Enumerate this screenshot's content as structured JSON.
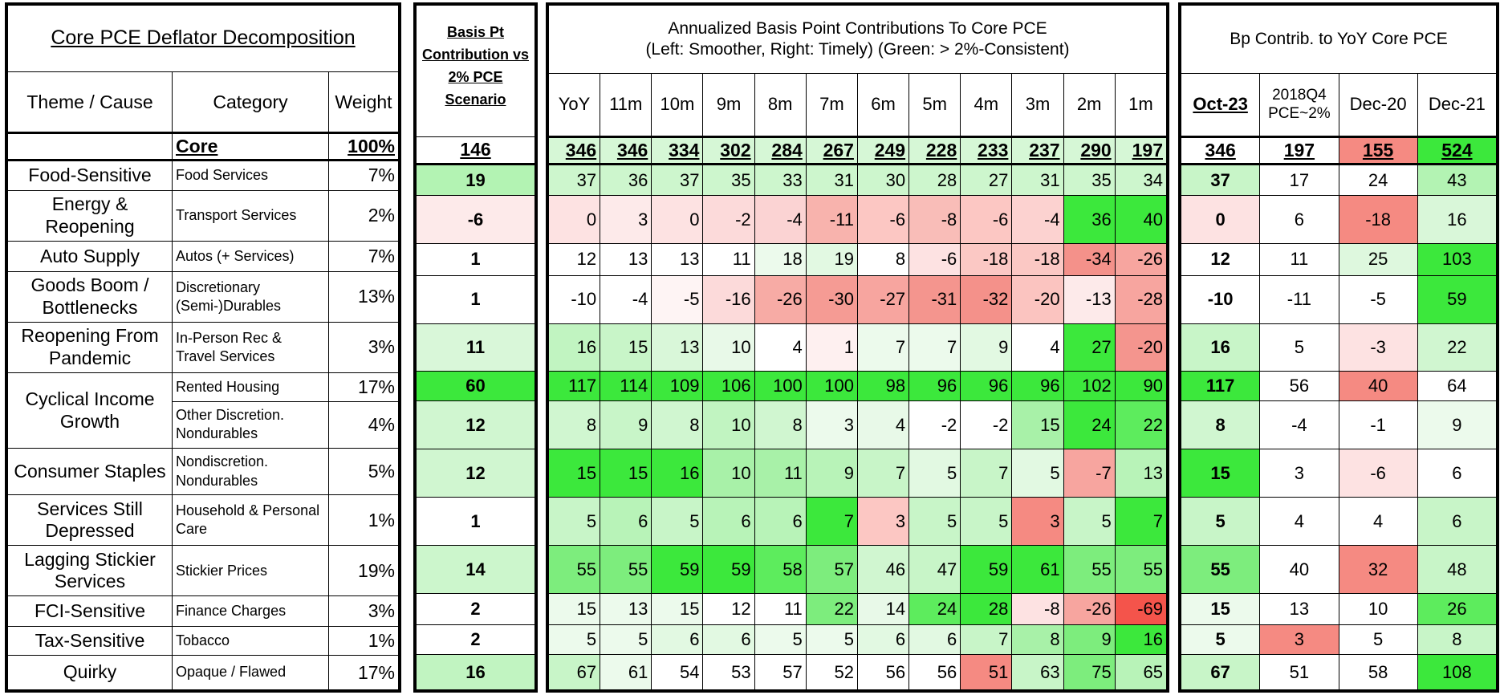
{
  "sections": {
    "decomposition": "Core PCE Deflator Decomposition",
    "basis_pt": "Basis Pt Contribution vs 2% PCE Scenario",
    "annualized_line1": "Annualized Basis Point Contributions To Core PCE",
    "annualized_line2": "(Left: Smoother, Right: Timely) (Green: > 2%-Consistent)",
    "bp_contrib": "Bp Contrib. to YoY Core PCE"
  },
  "headers": {
    "theme": "Theme / Cause",
    "category": "Category",
    "weight": "Weight",
    "periods": [
      "YoY",
      "11m",
      "10m",
      "9m",
      "8m",
      "7m",
      "6m",
      "5m",
      "4m",
      "3m",
      "2m",
      "1m"
    ],
    "yoy_cols": [
      "Oct-23",
      "2018Q4 PCE~2%",
      "Dec-20",
      "Dec-21"
    ]
  },
  "core": {
    "label": "Core",
    "weight": "100%",
    "basis": "146",
    "periods": [
      "346",
      "346",
      "334",
      "302",
      "284",
      "267",
      "249",
      "228",
      "233",
      "237",
      "290",
      "197"
    ],
    "yoy": [
      "346",
      "197",
      "155",
      "524"
    ],
    "period_colors": [
      "#d6f7d6",
      "#d6f7d6",
      "#d6f7d6",
      "#d6f7d6",
      "#d6f7d6",
      "#d6f7d6",
      "#d6f7d6",
      "#d6f7d6",
      "#d6f7d6",
      "#d6f7d6",
      "#d6f7d6",
      "#d6f7d6"
    ],
    "yoy_colors": [
      "#ffffff",
      "#ffffff",
      "#f58a82",
      "#3ce83c"
    ]
  },
  "rows": [
    {
      "theme": "Food-Sensitive",
      "category": "Food Services",
      "weight": "7%",
      "basis": "19",
      "basis_color": "#b3f3b3",
      "periods": [
        "37",
        "36",
        "37",
        "35",
        "33",
        "31",
        "30",
        "28",
        "27",
        "31",
        "35",
        "34"
      ],
      "colors": [
        "#cdf6cd",
        "#cdf6cd",
        "#cdf6cd",
        "#cdf6cd",
        "#cdf6cd",
        "#cdf6cd",
        "#cdf6cd",
        "#cdf6cd",
        "#cdf6cd",
        "#cdf6cd",
        "#cdf6cd",
        "#cdf6cd"
      ],
      "yoy": [
        "37",
        "17",
        "24",
        "43"
      ],
      "yoy_colors": [
        "#c8f5c8",
        "#ffffff",
        "#ffffff",
        "#b3f3b3"
      ]
    },
    {
      "theme": "Energy & Reopening",
      "category": "Transport Services",
      "weight": "2%",
      "basis": "-6",
      "basis_color": "#fdeaea",
      "periods": [
        "0",
        "3",
        "0",
        "-2",
        "-4",
        "-11",
        "-6",
        "-8",
        "-6",
        "-4",
        "36",
        "40"
      ],
      "colors": [
        "#fde2e2",
        "#fdeaea",
        "#fde2e2",
        "#fcdada",
        "#fbd3d3",
        "#f8b3ad",
        "#fcc7c3",
        "#f9bdb8",
        "#fcc7c3",
        "#fcd2d0",
        "#3ce83c",
        "#3ce83c"
      ],
      "yoy": [
        "0",
        "6",
        "-18",
        "16"
      ],
      "yoy_colors": [
        "#fde2e2",
        "#ffffff",
        "#f58a82",
        "#d9f7d9"
      ]
    },
    {
      "theme": "Auto Supply",
      "category": "Autos (+ Services)",
      "weight": "7%",
      "basis": "1",
      "basis_color": "#ffffff",
      "periods": [
        "12",
        "13",
        "13",
        "11",
        "18",
        "19",
        "8",
        "-6",
        "-18",
        "-18",
        "-34",
        "-26"
      ],
      "colors": [
        "#ffffff",
        "#ffffff",
        "#ffffff",
        "#ffffff",
        "#ecfaec",
        "#e2f9e2",
        "#ffffff",
        "#fde2e2",
        "#fbc8c4",
        "#fbc8c4",
        "#f4918a",
        "#f7a59f"
      ],
      "yoy": [
        "12",
        "11",
        "25",
        "103"
      ],
      "yoy_colors": [
        "#ffffff",
        "#ffffff",
        "#def8de",
        "#3ce83c"
      ]
    },
    {
      "theme": "Goods Boom / Bottlenecks",
      "category": "Discretionary (Semi-)Durables",
      "weight": "13%",
      "basis": "1",
      "basis_color": "#ffffff",
      "periods": [
        "-10",
        "-4",
        "-5",
        "-16",
        "-26",
        "-30",
        "-27",
        "-31",
        "-32",
        "-20",
        "-13",
        "-28"
      ],
      "colors": [
        "#ffffff",
        "#ffffff",
        "#fef4f4",
        "#fcdada",
        "#f7aba5",
        "#f59b94",
        "#f7a59f",
        "#f4958e",
        "#f4918a",
        "#fbc4c0",
        "#fdeaea",
        "#f7a59f"
      ],
      "yoy": [
        "-10",
        "-11",
        "-5",
        "59"
      ],
      "yoy_colors": [
        "#ffffff",
        "#ffffff",
        "#ffffff",
        "#3ce83c"
      ]
    },
    {
      "theme": "Reopening From Pandemic",
      "category": "In-Person Rec & Travel Services",
      "weight": "3%",
      "basis": "11",
      "basis_color": "#d9f7d9",
      "periods": [
        "16",
        "15",
        "13",
        "10",
        "4",
        "1",
        "7",
        "7",
        "9",
        "4",
        "27",
        "-20"
      ],
      "colors": [
        "#c1f4c1",
        "#c8f5c8",
        "#d9f7d9",
        "#e8f9e8",
        "#ffffff",
        "#fef0f0",
        "#ecfaec",
        "#ecfaec",
        "#e2f9e2",
        "#ffffff",
        "#3ce83c",
        "#f4958e"
      ],
      "yoy": [
        "16",
        "5",
        "-3",
        "22"
      ],
      "yoy_colors": [
        "#c8f5c8",
        "#ffffff",
        "#fde2e2",
        "#d0f6d0"
      ]
    },
    {
      "theme": "Cyclical Income Growth",
      "category": "Rented Housing",
      "weight": "17%",
      "basis": "60",
      "basis_color": "#3ce83c",
      "periods": [
        "117",
        "114",
        "109",
        "106",
        "100",
        "100",
        "98",
        "96",
        "96",
        "96",
        "102",
        "90"
      ],
      "colors": [
        "#3ce83c",
        "#3ce83c",
        "#3ce83c",
        "#3ce83c",
        "#3ce83c",
        "#3ce83c",
        "#3ce83c",
        "#3ce83c",
        "#3ce83c",
        "#3ce83c",
        "#3ce83c",
        "#3ce83c"
      ],
      "yoy": [
        "117",
        "56",
        "40",
        "64"
      ],
      "yoy_colors": [
        "#3ce83c",
        "#ffffff",
        "#f58a82",
        "#ffffff"
      ]
    },
    {
      "theme": "",
      "category": "Other Discretion. Nondurables",
      "weight": "4%",
      "basis": "12",
      "basis_color": "#d0f6d0",
      "periods": [
        "8",
        "9",
        "8",
        "10",
        "8",
        "3",
        "4",
        "-2",
        "-2",
        "15",
        "24",
        "22"
      ],
      "colors": [
        "#d0f6d0",
        "#c8f5c8",
        "#d0f6d0",
        "#c1f4c1",
        "#d0f6d0",
        "#ecfaec",
        "#e8f9e8",
        "#ffffff",
        "#ffffff",
        "#a8f1a8",
        "#3ce83c",
        "#5dec5d"
      ],
      "yoy": [
        "8",
        "-4",
        "-1",
        "9"
      ],
      "yoy_colors": [
        "#d0f6d0",
        "#ffffff",
        "#ffffff",
        "#ecfaec"
      ]
    },
    {
      "theme": "Consumer Staples",
      "category": "Nondiscretion. Nondurables",
      "weight": "5%",
      "basis": "12",
      "basis_color": "#d0f6d0",
      "periods": [
        "15",
        "15",
        "16",
        "10",
        "11",
        "9",
        "7",
        "5",
        "7",
        "5",
        "-7",
        "13"
      ],
      "colors": [
        "#3ce83c",
        "#3ce83c",
        "#3ce83c",
        "#a8f1a8",
        "#a8f1a8",
        "#b8f3b8",
        "#c8f5c8",
        "#e2f9e2",
        "#c8f5c8",
        "#e2f9e2",
        "#f7a59f",
        "#b8f3b8"
      ],
      "yoy": [
        "15",
        "3",
        "-6",
        "6"
      ],
      "yoy_colors": [
        "#3ce83c",
        "#ffffff",
        "#fde2e2",
        "#ffffff"
      ]
    },
    {
      "theme": "Services Still Depressed",
      "category": "Household & Personal Care",
      "weight": "1%",
      "basis": "1",
      "basis_color": "#ffffff",
      "periods": [
        "5",
        "6",
        "5",
        "6",
        "6",
        "7",
        "3",
        "5",
        "5",
        "3",
        "5",
        "7"
      ],
      "colors": [
        "#c8f5c8",
        "#b8f3b8",
        "#c8f5c8",
        "#b8f3b8",
        "#b8f3b8",
        "#3ce83c",
        "#fcc7c3",
        "#c8f5c8",
        "#c8f5c8",
        "#f58a82",
        "#c8f5c8",
        "#3ce83c"
      ],
      "yoy": [
        "5",
        "4",
        "4",
        "6"
      ],
      "yoy_colors": [
        "#c8f5c8",
        "#ffffff",
        "#ffffff",
        "#c8f5c8"
      ]
    },
    {
      "theme": "Lagging Stickier Services",
      "category": "Stickier Prices",
      "weight": "19%",
      "basis": "14",
      "basis_color": "#ccf6cc",
      "periods": [
        "55",
        "55",
        "59",
        "59",
        "58",
        "57",
        "46",
        "47",
        "59",
        "61",
        "55",
        "55"
      ],
      "colors": [
        "#7ded7d",
        "#7ded7d",
        "#3ce83c",
        "#3ce83c",
        "#5dec5d",
        "#7ded7d",
        "#d0f6d0",
        "#c8f5c8",
        "#3ce83c",
        "#3ce83c",
        "#7ded7d",
        "#7ded7d"
      ],
      "yoy": [
        "55",
        "40",
        "32",
        "48"
      ],
      "yoy_colors": [
        "#7ded7d",
        "#ffffff",
        "#f58a82",
        "#c8f5c8"
      ]
    },
    {
      "theme": "FCI-Sensitive",
      "category": "Finance Charges",
      "weight": "3%",
      "basis": "2",
      "basis_color": "#ffffff",
      "periods": [
        "15",
        "13",
        "15",
        "12",
        "11",
        "22",
        "14",
        "24",
        "28",
        "-8",
        "-26",
        "-69"
      ],
      "colors": [
        "#ecfaec",
        "#ecfaec",
        "#ecfaec",
        "#ffffff",
        "#ffffff",
        "#7ded7d",
        "#e8f9e8",
        "#5dec5d",
        "#3ce83c",
        "#fde2e2",
        "#f7a59f",
        "#f4544b"
      ],
      "yoy": [
        "15",
        "13",
        "10",
        "26"
      ],
      "yoy_colors": [
        "#ecfaec",
        "#ffffff",
        "#ffffff",
        "#5dec5d"
      ]
    },
    {
      "theme": "Tax-Sensitive",
      "category": "Tobacco",
      "weight": "1%",
      "basis": "2",
      "basis_color": "#ffffff",
      "periods": [
        "5",
        "5",
        "6",
        "6",
        "5",
        "5",
        "6",
        "6",
        "7",
        "8",
        "9",
        "16"
      ],
      "colors": [
        "#ecfaec",
        "#ecfaec",
        "#e2f9e2",
        "#e2f9e2",
        "#ecfaec",
        "#ecfaec",
        "#e2f9e2",
        "#e2f9e2",
        "#c8f5c8",
        "#a8f1a8",
        "#7ded7d",
        "#3ce83c"
      ],
      "yoy": [
        "5",
        "3",
        "5",
        "8"
      ],
      "yoy_colors": [
        "#ecfaec",
        "#f58a82",
        "#ffffff",
        "#c8f5c8"
      ]
    },
    {
      "theme": "Quirky",
      "category": "Opaque / Flawed",
      "weight": "17%",
      "basis": "16",
      "basis_color": "#c1f4c1",
      "periods": [
        "67",
        "61",
        "54",
        "53",
        "57",
        "52",
        "56",
        "56",
        "51",
        "63",
        "75",
        "65"
      ],
      "colors": [
        "#c8f5c8",
        "#ecfaec",
        "#ffffff",
        "#ffffff",
        "#ffffff",
        "#ffffff",
        "#ffffff",
        "#ffffff",
        "#f58a82",
        "#c8f5c8",
        "#7ded7d",
        "#b8f3b8"
      ],
      "yoy": [
        "67",
        "51",
        "58",
        "108"
      ],
      "yoy_colors": [
        "#c8f5c8",
        "#ffffff",
        "#ffffff",
        "#3ce83c"
      ]
    }
  ]
}
